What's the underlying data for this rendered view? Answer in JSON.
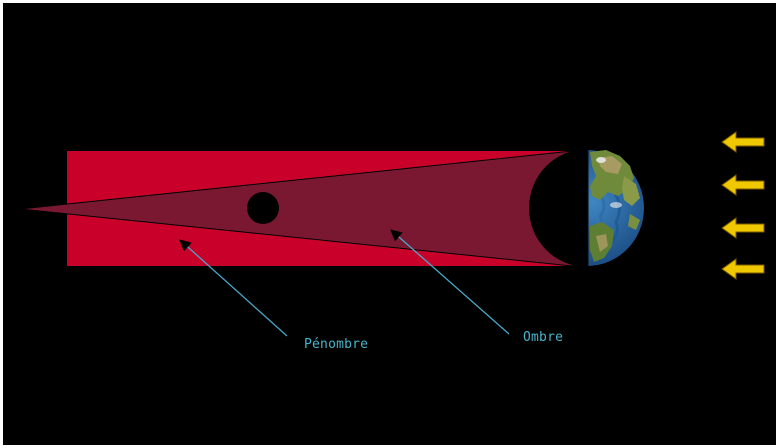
{
  "labels": {
    "penumbra": "Pénombre",
    "umbra": "Ombre"
  },
  "colors": {
    "background": "#000000",
    "frame": "#ffffff",
    "penumbra": "#c8002a",
    "umbra": "#7a1832",
    "moon": "#000000",
    "label_text": "#47b3c9",
    "pointer": "#4aa6c8",
    "sunlight_arrow": "#f0c800"
  },
  "icons": {
    "earth": "earth-globe-icon",
    "moon": "moon-icon",
    "sunlight": "sunlight-arrow-icon"
  },
  "sunlight_arrow_count": 4
}
